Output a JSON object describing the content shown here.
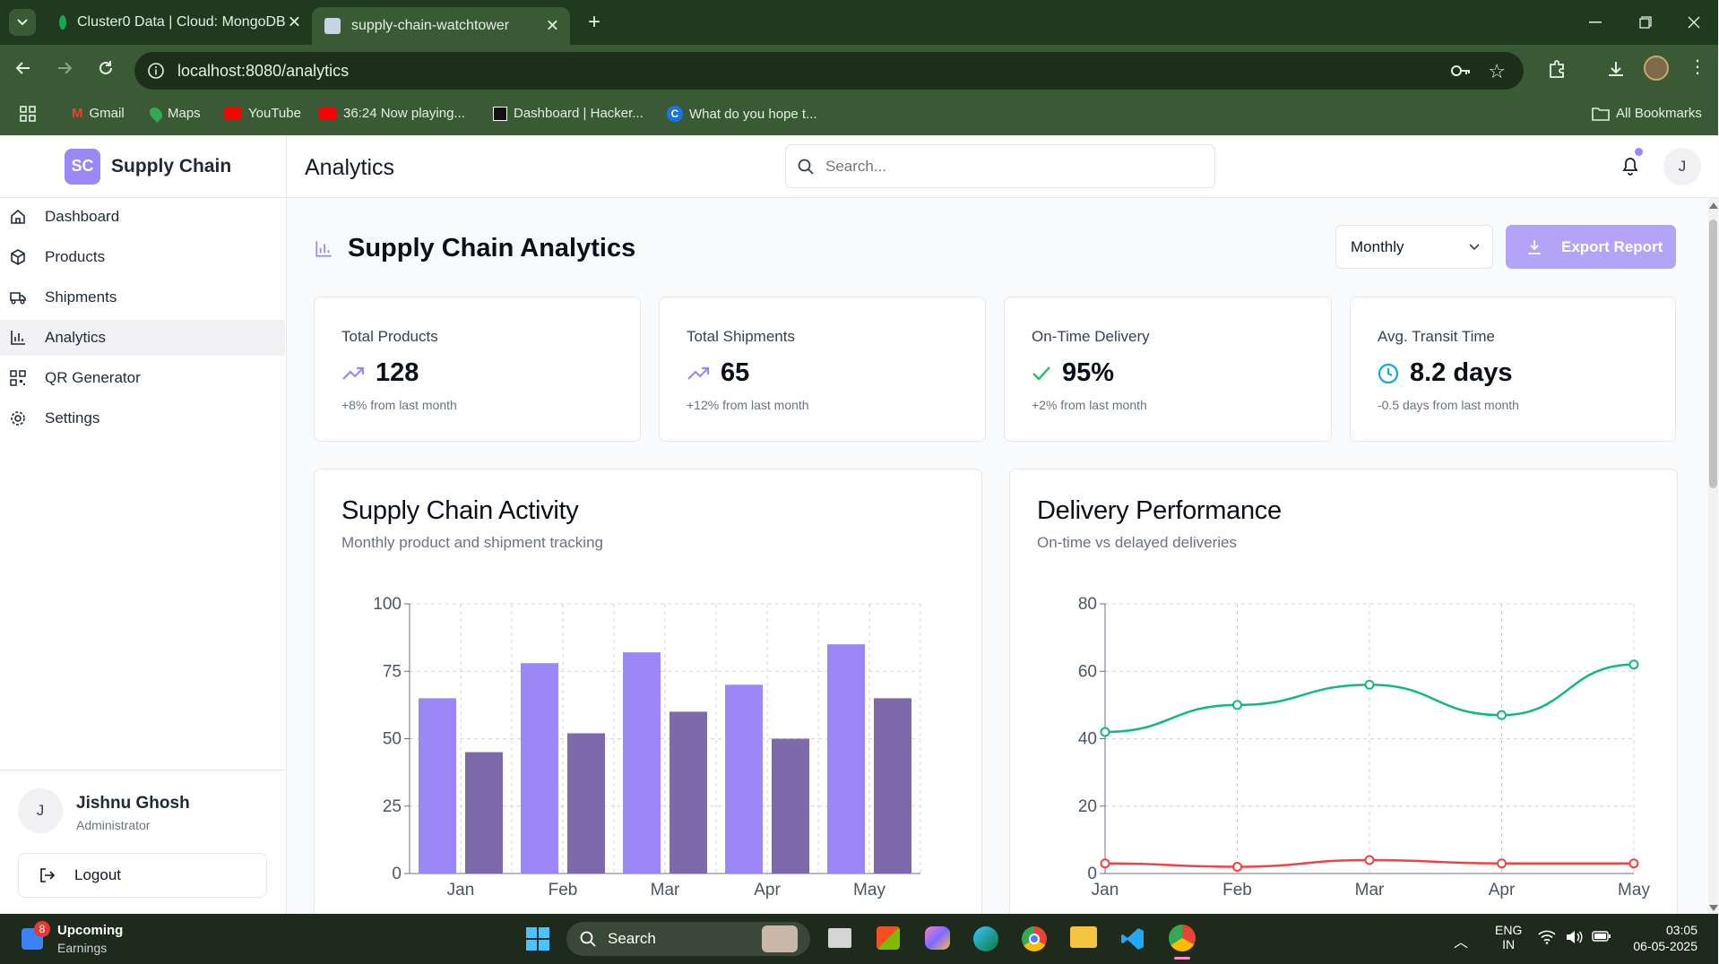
{
  "browser": {
    "tabs": [
      {
        "title": "Cluster0 Data | Cloud: MongoDB"
      },
      {
        "title": "supply-chain-watchtower"
      }
    ],
    "url": "localhost:8080/analytics",
    "bookmarks": [
      "Gmail",
      "Maps",
      "YouTube",
      "36:24 Now playing...",
      "Dashboard | Hacker...",
      "What do you hope t..."
    ],
    "all_bookmarks": "All Bookmarks"
  },
  "sidebar": {
    "logo": "SC",
    "brand": "Supply Chain",
    "items": [
      {
        "label": "Dashboard",
        "icon": "home-icon"
      },
      {
        "label": "Products",
        "icon": "box-icon"
      },
      {
        "label": "Shipments",
        "icon": "truck-icon"
      },
      {
        "label": "Analytics",
        "icon": "bar-chart-icon"
      },
      {
        "label": "QR Generator",
        "icon": "qr-code-icon"
      },
      {
        "label": "Settings",
        "icon": "gear-icon"
      }
    ],
    "user": {
      "initial": "J",
      "name": "Jishnu Ghosh",
      "role": "Administrator"
    },
    "logout": "Logout"
  },
  "header": {
    "title": "Analytics",
    "search_placeholder": "Search...",
    "avatar": "J"
  },
  "page": {
    "title": "Supply Chain Analytics",
    "period": "Monthly",
    "export": "Export Report"
  },
  "stats": [
    {
      "title": "Total Products",
      "value": "128",
      "sub": "+8% from last month",
      "icon": "trending-up-icon"
    },
    {
      "title": "Total Shipments",
      "value": "65",
      "sub": "+12% from last month",
      "icon": "trending-up-icon"
    },
    {
      "title": "On-Time Delivery",
      "value": "95%",
      "sub": "+2% from last month",
      "icon": "check-icon"
    },
    {
      "title": "Avg. Transit Time",
      "value": "8.2 days",
      "sub": "-0.5 days from last month",
      "icon": "clock-icon"
    }
  ],
  "charts": {
    "activity": {
      "title": "Supply Chain Activity",
      "subtitle": "Monthly product and shipment tracking"
    },
    "delivery": {
      "title": "Delivery Performance",
      "subtitle": "On-time vs delayed deliveries"
    }
  },
  "chart_data": [
    {
      "type": "bar",
      "title": "Supply Chain Activity",
      "categories": [
        "Jan",
        "Feb",
        "Mar",
        "Apr",
        "May"
      ],
      "series": [
        {
          "values": [
            65,
            78,
            82,
            70,
            85
          ],
          "color": "#9b87f5"
        },
        {
          "values": [
            45,
            52,
            60,
            50,
            65
          ],
          "color": "#7e69ab"
        }
      ],
      "ylim": [
        0,
        100
      ],
      "yticks": [
        0,
        25,
        50,
        75,
        100
      ],
      "grid": true
    },
    {
      "type": "line",
      "title": "Delivery Performance",
      "categories": [
        "Jan",
        "Feb",
        "Mar",
        "Apr",
        "May"
      ],
      "series": [
        {
          "values": [
            42,
            50,
            56,
            47,
            62
          ],
          "color": "#10b981"
        },
        {
          "values": [
            3,
            2,
            4,
            3,
            3
          ],
          "color": "#ef4444"
        }
      ],
      "ylim": [
        0,
        80
      ],
      "yticks": [
        0,
        20,
        40,
        60,
        80
      ],
      "grid": true
    }
  ],
  "taskbar": {
    "badge": "8",
    "widget_title": "Upcoming",
    "widget_sub": "Earnings",
    "search": "Search",
    "lang1": "ENG",
    "lang2": "IN",
    "time": "03:05",
    "date": "06-05-2025"
  }
}
